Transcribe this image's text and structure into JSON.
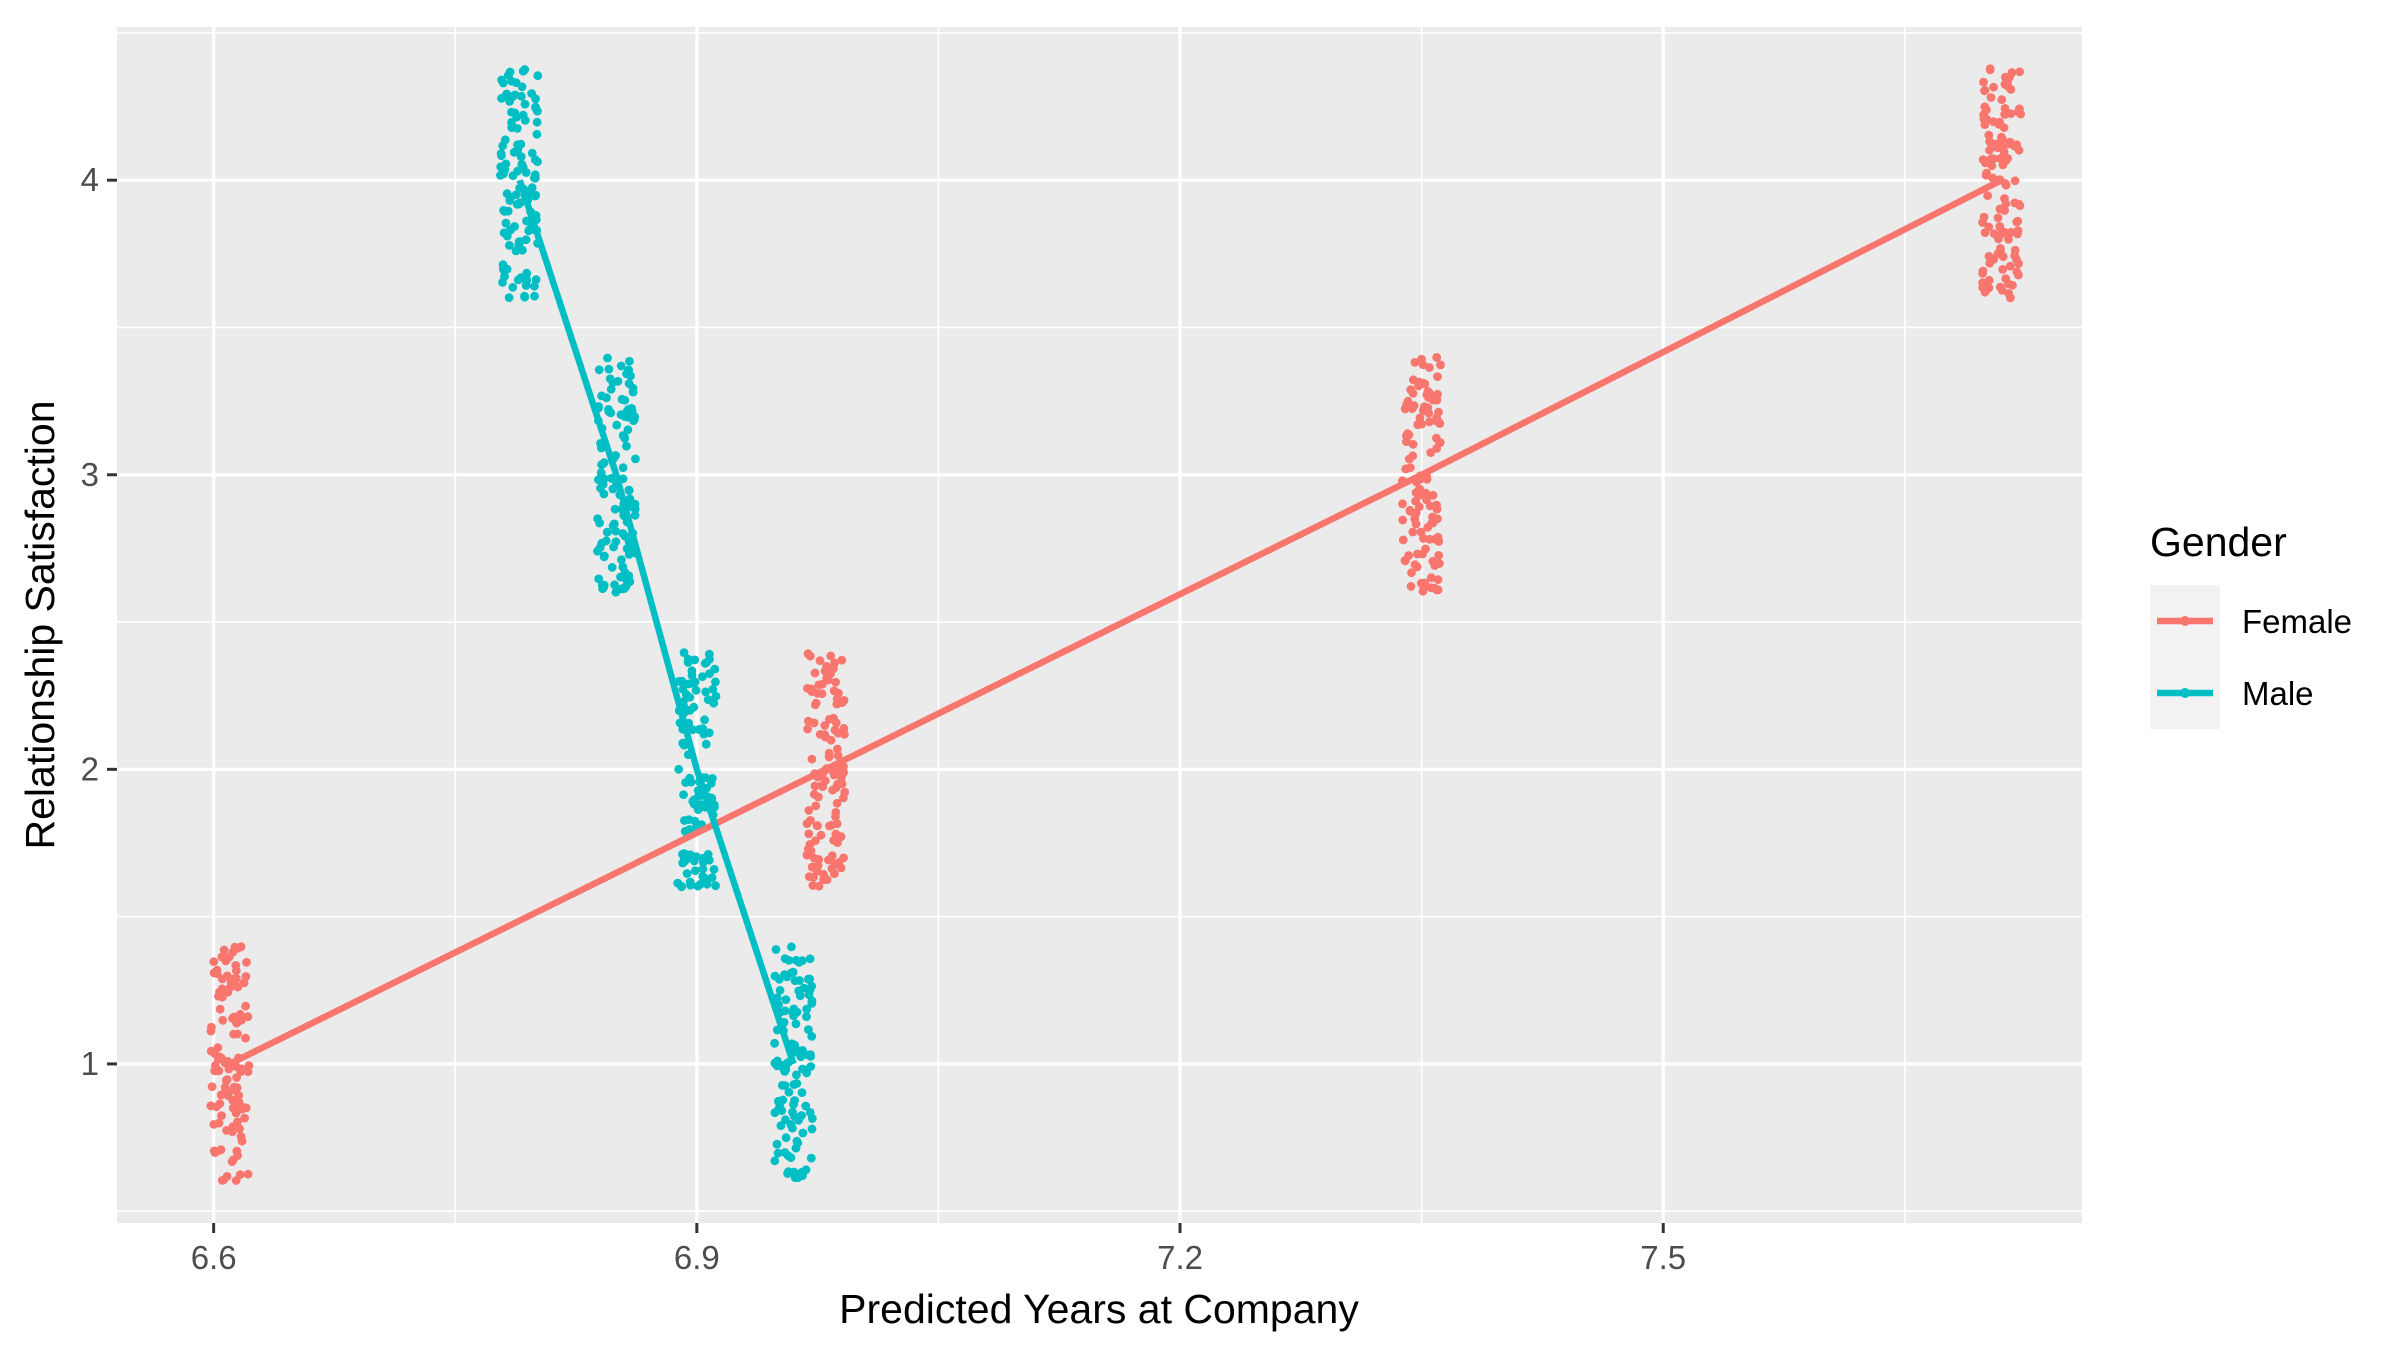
{
  "chart_data": {
    "type": "scatter",
    "title": "",
    "xlabel": "Predicted Years at Company",
    "ylabel": "Relationship Satisfaction",
    "xlim": [
      6.54,
      7.76
    ],
    "ylim": [
      0.46,
      4.52
    ],
    "x_ticks": [
      6.6,
      6.9,
      7.2,
      7.5
    ],
    "x_tick_labels": [
      "6.6",
      "6.9",
      "7.2",
      "7.5"
    ],
    "y_ticks": [
      1,
      2,
      3,
      4
    ],
    "y_tick_labels": [
      "1",
      "2",
      "3",
      "4"
    ],
    "grid": true,
    "legend": {
      "title": "Gender",
      "position": "right"
    },
    "jitter": {
      "x": 0.012,
      "y": 0.4
    },
    "points_per_cluster": 120,
    "series": [
      {
        "name": "Female",
        "color": "#F8766D",
        "x": [
          6.61,
          6.98,
          7.35,
          7.71
        ],
        "y": [
          1,
          2,
          3,
          4
        ]
      },
      {
        "name": "Male",
        "color": "#00BFC4",
        "x": [
          6.79,
          6.85,
          6.9,
          6.96
        ],
        "y": [
          4,
          3,
          2,
          1
        ]
      }
    ]
  }
}
